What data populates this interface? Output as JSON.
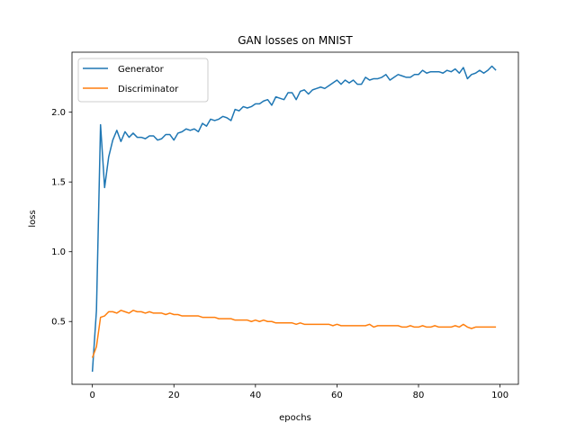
{
  "chart_data": {
    "type": "line",
    "title": "GAN losses on MNIST",
    "xlabel": "epochs",
    "ylabel": "loss",
    "xlim": [
      -5,
      104.5
    ],
    "ylim": [
      0.05,
      2.43
    ],
    "xticks": [
      0,
      20,
      40,
      60,
      80,
      100
    ],
    "yticks": [
      0.5,
      1.0,
      1.5,
      2.0
    ],
    "xtick_labels": [
      "0",
      "20",
      "40",
      "60",
      "80",
      "100"
    ],
    "ytick_labels": [
      "0.5",
      "1.0",
      "1.5",
      "2.0"
    ],
    "grid": false,
    "legend_position": "top-left",
    "series": [
      {
        "name": "Generator",
        "color": "#1f77b4",
        "x": [
          0,
          1,
          2,
          3,
          4,
          5,
          6,
          7,
          8,
          9,
          10,
          11,
          12,
          13,
          14,
          15,
          16,
          17,
          18,
          19,
          20,
          21,
          22,
          23,
          24,
          25,
          26,
          27,
          28,
          29,
          30,
          31,
          32,
          33,
          34,
          35,
          36,
          37,
          38,
          39,
          40,
          41,
          42,
          43,
          44,
          45,
          46,
          47,
          48,
          49,
          50,
          51,
          52,
          53,
          54,
          55,
          56,
          57,
          58,
          59,
          60,
          61,
          62,
          63,
          64,
          65,
          66,
          67,
          68,
          69,
          70,
          71,
          72,
          73,
          74,
          75,
          76,
          77,
          78,
          79,
          80,
          81,
          82,
          83,
          84,
          85,
          86,
          87,
          88,
          89,
          90,
          91,
          92,
          93,
          94,
          95,
          96,
          97,
          98,
          99
        ],
        "values": [
          0.14,
          0.58,
          1.91,
          1.46,
          1.68,
          1.8,
          1.87,
          1.79,
          1.86,
          1.82,
          1.85,
          1.82,
          1.82,
          1.81,
          1.83,
          1.83,
          1.8,
          1.81,
          1.84,
          1.84,
          1.8,
          1.85,
          1.86,
          1.88,
          1.87,
          1.88,
          1.86,
          1.92,
          1.9,
          1.95,
          1.94,
          1.95,
          1.97,
          1.96,
          1.94,
          2.02,
          2.01,
          2.04,
          2.03,
          2.04,
          2.06,
          2.06,
          2.08,
          2.09,
          2.05,
          2.11,
          2.1,
          2.09,
          2.14,
          2.14,
          2.09,
          2.15,
          2.16,
          2.13,
          2.16,
          2.17,
          2.18,
          2.17,
          2.19,
          2.21,
          2.23,
          2.2,
          2.23,
          2.21,
          2.23,
          2.2,
          2.2,
          2.25,
          2.23,
          2.24,
          2.24,
          2.25,
          2.27,
          2.23,
          2.25,
          2.27,
          2.26,
          2.25,
          2.25,
          2.27,
          2.27,
          2.3,
          2.28,
          2.29,
          2.29,
          2.29,
          2.28,
          2.3,
          2.29,
          2.31,
          2.28,
          2.32,
          2.24,
          2.27,
          2.28,
          2.3,
          2.28,
          2.3,
          2.33,
          2.3
        ]
      },
      {
        "name": "Discriminator",
        "color": "#ff7f0e",
        "x": [
          0,
          1,
          2,
          3,
          4,
          5,
          6,
          7,
          8,
          9,
          10,
          11,
          12,
          13,
          14,
          15,
          16,
          17,
          18,
          19,
          20,
          21,
          22,
          23,
          24,
          25,
          26,
          27,
          28,
          29,
          30,
          31,
          32,
          33,
          34,
          35,
          36,
          37,
          38,
          39,
          40,
          41,
          42,
          43,
          44,
          45,
          46,
          47,
          48,
          49,
          50,
          51,
          52,
          53,
          54,
          55,
          56,
          57,
          58,
          59,
          60,
          61,
          62,
          63,
          64,
          65,
          66,
          67,
          68,
          69,
          70,
          71,
          72,
          73,
          74,
          75,
          76,
          77,
          78,
          79,
          80,
          81,
          82,
          83,
          84,
          85,
          86,
          87,
          88,
          89,
          90,
          91,
          92,
          93,
          94,
          95,
          96,
          97,
          98,
          99
        ],
        "values": [
          0.24,
          0.32,
          0.53,
          0.54,
          0.57,
          0.57,
          0.56,
          0.58,
          0.57,
          0.56,
          0.58,
          0.57,
          0.57,
          0.56,
          0.57,
          0.56,
          0.56,
          0.56,
          0.55,
          0.56,
          0.55,
          0.55,
          0.54,
          0.54,
          0.54,
          0.54,
          0.54,
          0.53,
          0.53,
          0.53,
          0.53,
          0.52,
          0.52,
          0.52,
          0.52,
          0.51,
          0.51,
          0.51,
          0.51,
          0.5,
          0.51,
          0.5,
          0.51,
          0.5,
          0.5,
          0.49,
          0.49,
          0.49,
          0.49,
          0.49,
          0.48,
          0.49,
          0.48,
          0.48,
          0.48,
          0.48,
          0.48,
          0.48,
          0.48,
          0.47,
          0.48,
          0.47,
          0.47,
          0.47,
          0.47,
          0.47,
          0.47,
          0.47,
          0.48,
          0.46,
          0.47,
          0.47,
          0.47,
          0.47,
          0.47,
          0.47,
          0.46,
          0.46,
          0.47,
          0.46,
          0.46,
          0.47,
          0.46,
          0.46,
          0.47,
          0.46,
          0.46,
          0.46,
          0.46,
          0.47,
          0.46,
          0.48,
          0.46,
          0.45,
          0.46,
          0.46,
          0.46,
          0.46,
          0.46,
          0.46
        ]
      }
    ]
  }
}
